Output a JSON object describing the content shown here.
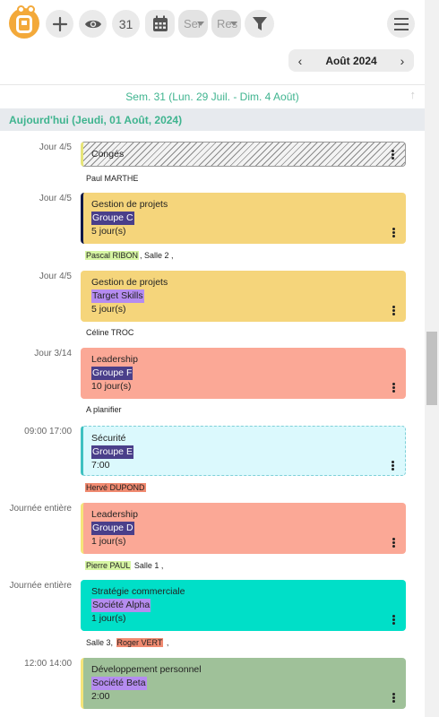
{
  "toolbar": {
    "week_number": "31",
    "select1": "Ser",
    "select2": "Res"
  },
  "month_nav": {
    "prev": "‹",
    "label": "Août 2024",
    "next": "›"
  },
  "week_header": "Sem. 31 (Lun. 29 Juil. - Dim. 4 Août)",
  "today_header": "Aujourd'hui (Jeudi, 01 Août, 2024)",
  "events": [
    {
      "time": "Jour 4/5",
      "title": "Congés",
      "group": "",
      "duration": "",
      "style": "hatched",
      "accent": "#e7e57a",
      "people": [
        {
          "text": "Paul MARTHE",
          "highlight": ""
        }
      ]
    },
    {
      "time": "Jour 4/5",
      "title": "Gestion de projets",
      "group": "Groupe C",
      "group_bg": "#4a3f8a",
      "group_color": "#ffffff",
      "duration": "5 jour(s)",
      "bg": "#f5d57b",
      "accent": "#101848",
      "people": [
        {
          "text": "Pascal RIBON",
          "highlight": "#d6f5a2"
        },
        {
          "text": ", Salle 2 ,",
          "highlight": ""
        }
      ]
    },
    {
      "time": "Jour 4/5",
      "title": "Gestion de projets",
      "group": "Target Skills",
      "group_bg": "#b58cf0",
      "group_color": "#222222",
      "duration": "5 jour(s)",
      "bg": "#f5d57b",
      "accent": "#f5d57b",
      "people": [
        {
          "text": "Céline TROC",
          "highlight": ""
        }
      ]
    },
    {
      "time": "Jour 3/14",
      "title": "Leadership",
      "group": "Groupe F",
      "group_bg": "#4a3f8a",
      "group_color": "#ffffff",
      "duration": "10 jour(s)",
      "bg": "#fba896",
      "accent": "#fba896",
      "people": [
        {
          "text": "A planifier",
          "highlight": ""
        }
      ]
    },
    {
      "time": "09:00 17:00",
      "title": "Sécurité",
      "group": "Groupe E",
      "group_bg": "#4a3f8a",
      "group_color": "#ffffff",
      "duration": "7:00",
      "bg": "#dbf9fd",
      "accent": "#3fc1c1",
      "dashed": true,
      "people": [
        {
          "text": "Hervé DUPOND",
          "highlight": "#f08a70"
        }
      ]
    },
    {
      "time": "Journée entière",
      "title": "Leadership",
      "group": "Groupe D",
      "group_bg": "#4a3f8a",
      "group_color": "#ffffff",
      "duration": "1 jour(s)",
      "bg": "#fba896",
      "accent": "#f5e57a",
      "people": [
        {
          "text": "Pierre PAUL",
          "highlight": "#d6f5a2"
        },
        {
          "text": " Salle 1 ,",
          "highlight": ""
        }
      ]
    },
    {
      "time": "Journée entière",
      "title": "Stratégie commerciale",
      "group": "Société Alpha",
      "group_bg": "#b58cf0",
      "group_color": "#222222",
      "duration": "1 jour(s)",
      "bg": "#00dfc8",
      "accent": "#00dfc8",
      "people": [
        {
          "text": "Salle 3, ",
          "highlight": ""
        },
        {
          "text": "Roger VERT",
          "highlight": "#f08a70"
        },
        {
          "text": " ,",
          "highlight": ""
        }
      ]
    },
    {
      "time": "12:00 14:00",
      "title": "Développement personnel",
      "group": "Société Beta",
      "group_bg": "#b58cf0",
      "group_color": "#222222",
      "duration": "2:00",
      "bg": "#9fc199",
      "accent": "#f5e57a",
      "people": []
    }
  ]
}
